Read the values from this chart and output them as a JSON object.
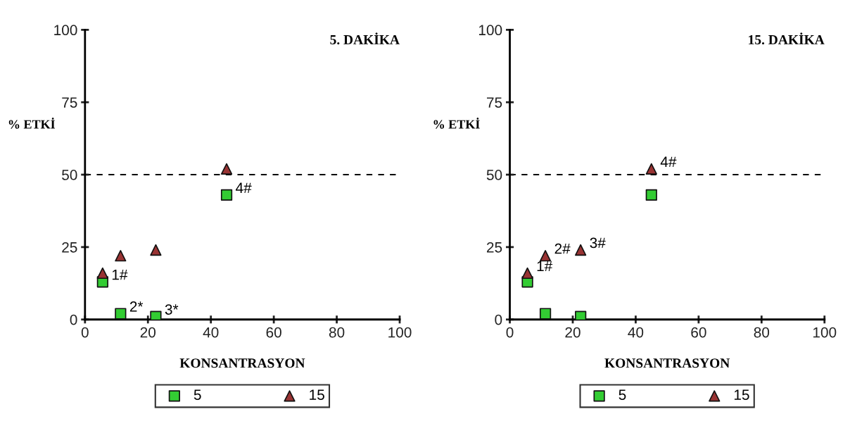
{
  "chart_data": [
    {
      "type": "scatter",
      "title": "5. DAKİKA",
      "xlabel": "KONSANTRASYON",
      "ylabel": "% ETKİ",
      "xlim": [
        0,
        100
      ],
      "ylim": [
        0,
        100
      ],
      "xticks": [
        0,
        20,
        40,
        60,
        80,
        100
      ],
      "yticks": [
        0,
        25,
        50,
        75,
        100
      ],
      "grid": false,
      "legend": "bottom",
      "series": [
        {
          "name": "5",
          "color": "#33cc33",
          "marker": "square",
          "x": [
            5.6,
            11.3,
            22.5,
            45
          ],
          "values": [
            13,
            2,
            1,
            43
          ]
        },
        {
          "name": "15",
          "color": "#993333",
          "marker": "triangle",
          "x": [
            5.6,
            11.3,
            22.5,
            45
          ],
          "values": [
            16,
            22,
            24,
            52
          ]
        }
      ],
      "ref_lines": [
        {
          "axis": "y",
          "value": 50,
          "line_style": "dashed",
          "color": "#000000"
        }
      ],
      "annotations": [
        {
          "text": "1#",
          "x": 5.6,
          "y": 13
        },
        {
          "text": "2*",
          "x": 11.3,
          "y": 2
        },
        {
          "text": "3*",
          "x": 22.5,
          "y": 1
        },
        {
          "text": "4#",
          "x": 45,
          "y": 43
        }
      ]
    },
    {
      "type": "scatter",
      "title": "15. DAKİKA",
      "xlabel": "KONSANTRASYON",
      "ylabel": "% ETKİ",
      "xlim": [
        0,
        100
      ],
      "ylim": [
        0,
        100
      ],
      "xticks": [
        0,
        20,
        40,
        60,
        80,
        100
      ],
      "yticks": [
        0,
        25,
        50,
        75,
        100
      ],
      "grid": false,
      "legend": "bottom",
      "series": [
        {
          "name": "5",
          "color": "#33cc33",
          "marker": "square",
          "x": [
            5.6,
            11.3,
            22.5,
            45
          ],
          "values": [
            13,
            2,
            1,
            43
          ]
        },
        {
          "name": "15",
          "color": "#993333",
          "marker": "triangle",
          "x": [
            5.6,
            11.3,
            22.5,
            45
          ],
          "values": [
            16,
            22,
            24,
            52
          ]
        }
      ],
      "ref_lines": [
        {
          "axis": "y",
          "value": 50,
          "line_style": "dashed",
          "color": "#000000"
        }
      ],
      "annotations": [
        {
          "text": "1#",
          "x": 5.6,
          "y": 16
        },
        {
          "text": "2#",
          "x": 11.3,
          "y": 22
        },
        {
          "text": "3#",
          "x": 22.5,
          "y": 24
        },
        {
          "text": "4#",
          "x": 45,
          "y": 52
        }
      ]
    }
  ]
}
